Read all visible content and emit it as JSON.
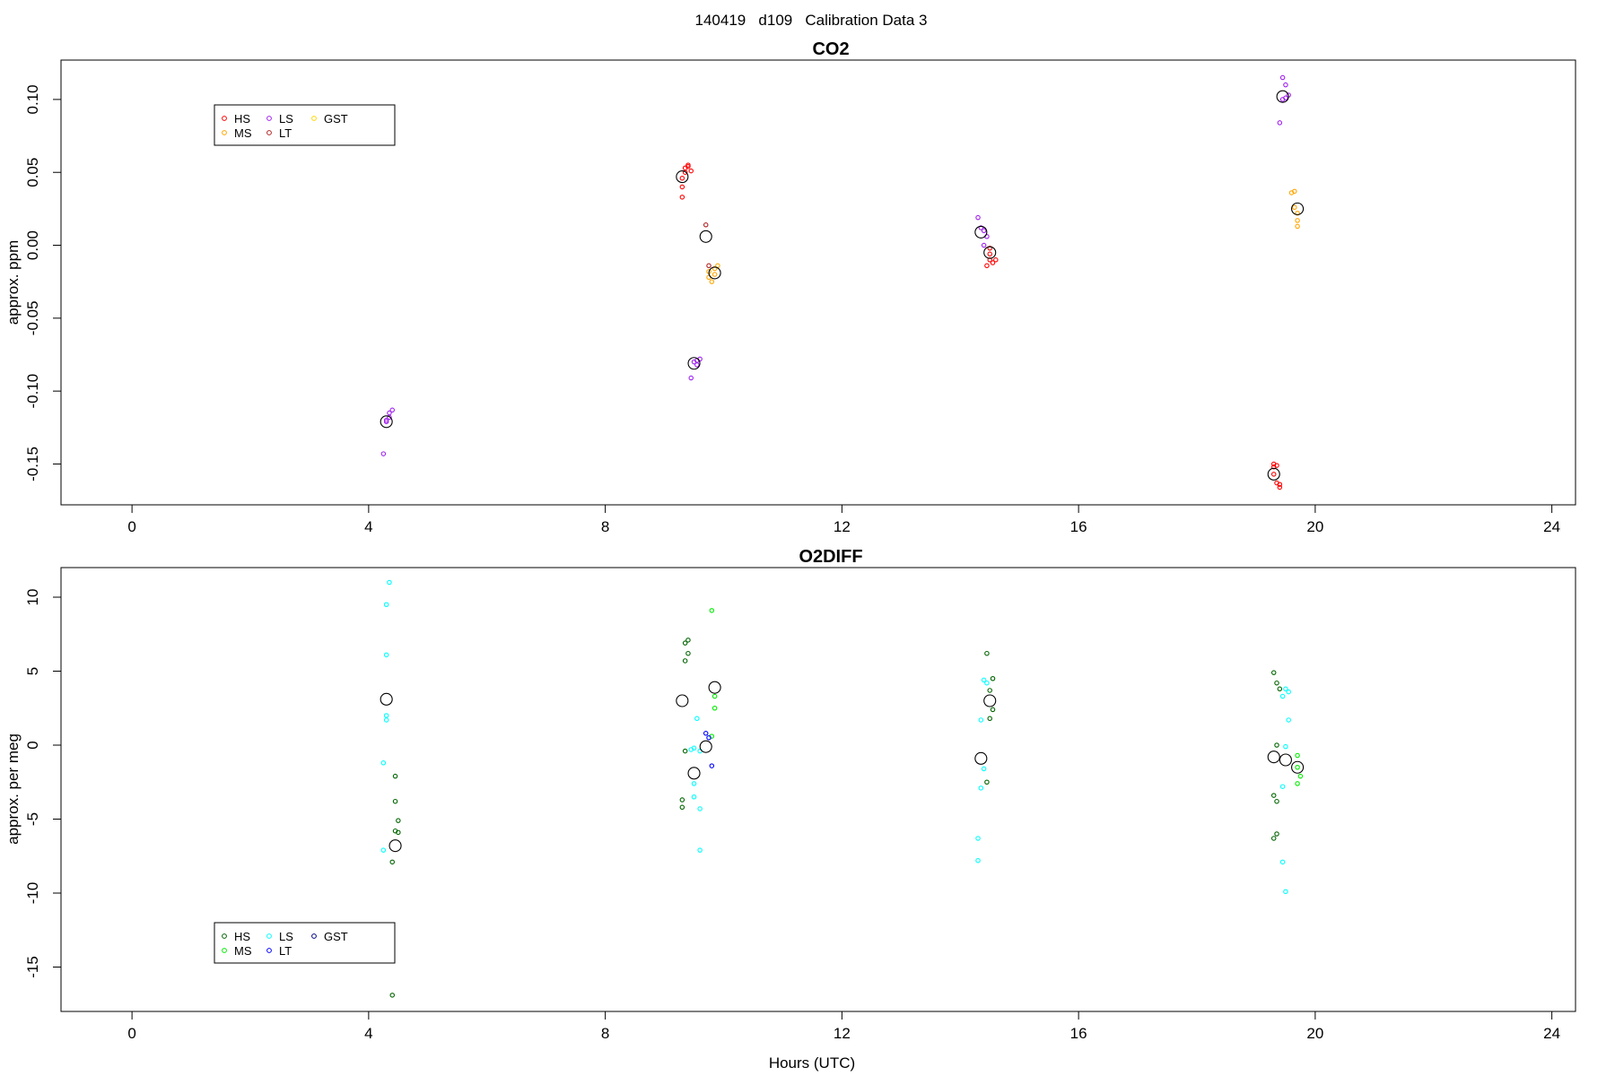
{
  "figure_title": "140419   d109   Calibration Data 3",
  "chart_data": [
    {
      "type": "scatter",
      "title": "CO2",
      "xlabel": "",
      "ylabel": "approx. ppm",
      "xlim": [
        -1.2,
        24.4
      ],
      "ylim": [
        -0.178,
        0.127
      ],
      "xticks": [
        "0",
        "4",
        "8",
        "12",
        "16",
        "20",
        "24"
      ],
      "yticks": [
        "-0.15",
        "-0.10",
        "-0.05",
        "0.00",
        "0.05",
        "0.10"
      ],
      "legend": {
        "position": "top-left",
        "entries": [
          {
            "label": "HS",
            "color": "#ff0000"
          },
          {
            "label": "MS",
            "color": "#ffa500"
          },
          {
            "label": "LS",
            "color": "#a020f0"
          },
          {
            "label": "LT",
            "color": "#b22222"
          },
          {
            "label": "GST",
            "color": "#ffd700"
          }
        ]
      },
      "series": [
        {
          "name": "HS",
          "color": "#ff0000",
          "points": [
            [
              9.3,
              0.033
            ],
            [
              9.3,
              0.04
            ],
            [
              9.3,
              0.046
            ],
            [
              9.35,
              0.05
            ],
            [
              9.35,
              0.053
            ],
            [
              9.4,
              0.055
            ],
            [
              9.4,
              0.054
            ],
            [
              9.45,
              0.051
            ],
            [
              14.5,
              -0.006
            ],
            [
              14.5,
              -0.01
            ],
            [
              14.55,
              -0.012
            ],
            [
              14.45,
              -0.014
            ],
            [
              14.6,
              -0.01
            ],
            [
              14.5,
              -0.002
            ],
            [
              19.3,
              -0.15
            ],
            [
              19.3,
              -0.152
            ],
            [
              19.35,
              -0.151
            ],
            [
              19.4,
              -0.164
            ],
            [
              19.4,
              -0.166
            ],
            [
              19.35,
              -0.163
            ],
            [
              19.3,
              -0.157
            ]
          ]
        },
        {
          "name": "MS",
          "color": "#ffa500",
          "points": [
            [
              9.75,
              -0.022
            ],
            [
              9.8,
              -0.025
            ],
            [
              9.75,
              -0.018
            ],
            [
              9.85,
              -0.016
            ],
            [
              9.9,
              -0.014
            ],
            [
              9.85,
              -0.02
            ],
            [
              19.6,
              0.036
            ],
            [
              19.65,
              0.037
            ],
            [
              19.7,
              0.022
            ],
            [
              19.7,
              0.017
            ],
            [
              19.7,
              0.013
            ],
            [
              19.65,
              0.026
            ]
          ]
        },
        {
          "name": "LS",
          "color": "#a020f0",
          "points": [
            [
              4.25,
              -0.143
            ],
            [
              4.3,
              -0.12
            ],
            [
              4.35,
              -0.118
            ],
            [
              4.35,
              -0.115
            ],
            [
              4.4,
              -0.113
            ],
            [
              4.3,
              -0.121
            ],
            [
              9.45,
              -0.091
            ],
            [
              9.5,
              -0.08
            ],
            [
              9.55,
              -0.079
            ],
            [
              9.6,
              -0.078
            ],
            [
              9.55,
              -0.082
            ],
            [
              14.3,
              0.019
            ],
            [
              14.35,
              0.012
            ],
            [
              14.4,
              0.01
            ],
            [
              14.4,
              0.0
            ],
            [
              14.45,
              0.006
            ],
            [
              19.4,
              0.084
            ],
            [
              19.45,
              0.115
            ],
            [
              19.5,
              0.11
            ],
            [
              19.5,
              0.101
            ],
            [
              19.55,
              0.103
            ],
            [
              19.45,
              0.1
            ]
          ]
        },
        {
          "name": "LT",
          "color": "#b22222",
          "points": [
            [
              9.7,
              0.014
            ],
            [
              9.75,
              -0.014
            ]
          ]
        },
        {
          "name": "GST",
          "color": "#ffd700",
          "points": []
        }
      ],
      "means": [
        [
          4.3,
          -0.121
        ],
        [
          9.3,
          0.047
        ],
        [
          9.5,
          -0.081
        ],
        [
          9.7,
          0.006
        ],
        [
          9.85,
          -0.019
        ],
        [
          14.35,
          0.009
        ],
        [
          14.5,
          -0.005
        ],
        [
          19.3,
          -0.157
        ],
        [
          19.45,
          0.102
        ],
        [
          19.7,
          0.025
        ]
      ]
    },
    {
      "type": "scatter",
      "title": "O2DIFF",
      "xlabel": "Hours (UTC)",
      "ylabel": "approx. per meg",
      "xlim": [
        -1.2,
        24.4
      ],
      "ylim": [
        -18,
        12
      ],
      "xticks": [
        "0",
        "4",
        "8",
        "12",
        "16",
        "20",
        "24"
      ],
      "yticks": [
        "-15",
        "-10",
        "-5",
        "0",
        "5",
        "10"
      ],
      "legend": {
        "position": "bottom-left",
        "entries": [
          {
            "label": "HS",
            "color": "#006400"
          },
          {
            "label": "MS",
            "color": "#00ee00"
          },
          {
            "label": "LS",
            "color": "#00ffff"
          },
          {
            "label": "LT",
            "color": "#0000ff"
          },
          {
            "label": "GST",
            "color": "#000080"
          }
        ]
      },
      "series": [
        {
          "name": "HS",
          "color": "#006400",
          "points": [
            [
              4.45,
              -2.1
            ],
            [
              4.45,
              -3.8
            ],
            [
              4.5,
              -5.1
            ],
            [
              4.45,
              -5.8
            ],
            [
              4.5,
              -5.9
            ],
            [
              4.4,
              -7.9
            ],
            [
              4.4,
              -16.9
            ],
            [
              9.35,
              -0.4
            ],
            [
              9.3,
              -3.7
            ],
            [
              9.3,
              -4.2
            ],
            [
              9.35,
              5.7
            ],
            [
              9.4,
              6.2
            ],
            [
              9.35,
              6.9
            ],
            [
              9.4,
              7.1
            ],
            [
              14.45,
              6.2
            ],
            [
              14.45,
              -2.5
            ],
            [
              14.55,
              4.5
            ],
            [
              14.5,
              3.7
            ],
            [
              14.55,
              2.4
            ],
            [
              14.5,
              1.8
            ],
            [
              19.3,
              -3.4
            ],
            [
              19.35,
              -3.8
            ],
            [
              19.3,
              -6.3
            ],
            [
              19.35,
              -6.0
            ],
            [
              19.35,
              0.0
            ],
            [
              19.3,
              4.9
            ],
            [
              19.35,
              4.2
            ],
            [
              19.4,
              3.8
            ]
          ]
        },
        {
          "name": "MS",
          "color": "#00ee00",
          "points": [
            [
              9.8,
              9.1
            ],
            [
              9.85,
              3.3
            ],
            [
              9.85,
              2.5
            ],
            [
              9.8,
              0.6
            ],
            [
              19.7,
              -0.7
            ],
            [
              19.7,
              -1.5
            ],
            [
              19.75,
              -2.1
            ],
            [
              19.7,
              -2.6
            ]
          ]
        },
        {
          "name": "LS",
          "color": "#00ffff",
          "points": [
            [
              4.35,
              11.0
            ],
            [
              4.3,
              9.5
            ],
            [
              4.3,
              6.1
            ],
            [
              4.3,
              2.0
            ],
            [
              4.3,
              1.7
            ],
            [
              4.25,
              -1.2
            ],
            [
              4.25,
              -7.1
            ],
            [
              9.55,
              1.8
            ],
            [
              9.5,
              -0.2
            ],
            [
              9.45,
              -0.3
            ],
            [
              9.6,
              -0.4
            ],
            [
              9.5,
              -2.6
            ],
            [
              9.5,
              -3.5
            ],
            [
              9.6,
              -4.3
            ],
            [
              9.6,
              -7.1
            ],
            [
              14.4,
              4.4
            ],
            [
              14.45,
              4.2
            ],
            [
              14.35,
              1.7
            ],
            [
              14.4,
              -1.6
            ],
            [
              14.35,
              -2.9
            ],
            [
              14.3,
              -6.3
            ],
            [
              14.3,
              -7.8
            ],
            [
              19.5,
              3.8
            ],
            [
              19.55,
              3.6
            ],
            [
              19.45,
              3.3
            ],
            [
              19.55,
              1.7
            ],
            [
              19.5,
              -0.1
            ],
            [
              19.45,
              -2.8
            ],
            [
              19.45,
              -7.9
            ],
            [
              19.5,
              -9.9
            ]
          ]
        },
        {
          "name": "LT",
          "color": "#0000ff",
          "points": [
            [
              9.7,
              0.8
            ],
            [
              9.75,
              0.5
            ],
            [
              9.8,
              -1.4
            ]
          ]
        },
        {
          "name": "GST",
          "color": "#000080",
          "points": []
        }
      ],
      "means": [
        [
          4.3,
          3.1
        ],
        [
          4.45,
          -6.8
        ],
        [
          9.3,
          3.0
        ],
        [
          9.5,
          -1.9
        ],
        [
          9.7,
          -0.1
        ],
        [
          9.85,
          3.9
        ],
        [
          14.35,
          -0.9
        ],
        [
          14.5,
          3.0
        ],
        [
          19.3,
          -0.8
        ],
        [
          19.5,
          -1.0
        ],
        [
          19.7,
          -1.5
        ]
      ]
    }
  ]
}
